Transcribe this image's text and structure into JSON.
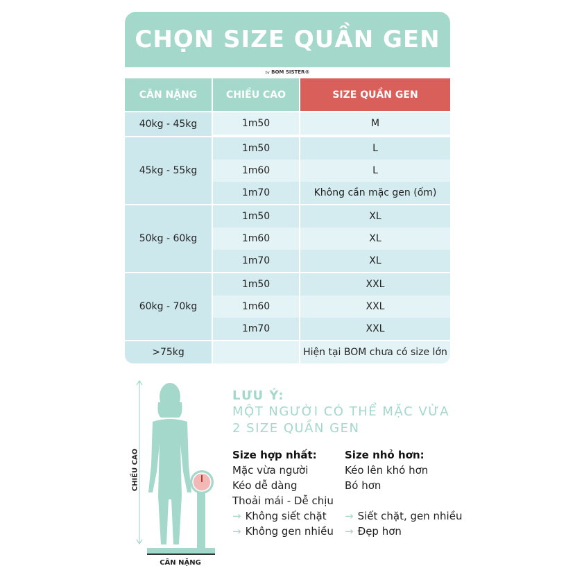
{
  "title": "CHỌN SIZE QUẦN GEN",
  "byline": {
    "by": "by",
    "brand": "BOM SISTER®"
  },
  "colors": {
    "teal": "#a3d8cb",
    "red": "#d9605a",
    "row_light": "#e4f3f6",
    "row_dark": "#d4ebef"
  },
  "table": {
    "headers": [
      "CÂN NẶNG",
      "CHIỀU CAO",
      "SIZE QUẦN GEN"
    ],
    "groups": [
      {
        "weight": "40kg -  45kg",
        "rows": [
          {
            "height": "1m50",
            "size": "M"
          }
        ]
      },
      {
        "weight": "45kg - 55kg",
        "rows": [
          {
            "height": "1m50",
            "size": "L"
          },
          {
            "height": "1m60",
            "size": "L"
          },
          {
            "height": "1m70",
            "size": "Không cần mặc gen (ốm)"
          }
        ]
      },
      {
        "weight": "50kg - 60kg",
        "rows": [
          {
            "height": "1m50",
            "size": "XL"
          },
          {
            "height": "1m60",
            "size": "XL"
          },
          {
            "height": "1m70",
            "size": "XL"
          }
        ]
      },
      {
        "weight": "60kg - 70kg",
        "rows": [
          {
            "height": "1m50",
            "size": "XXL"
          },
          {
            "height": "1m60",
            "size": "XXL"
          },
          {
            "height": "1m70",
            "size": "XXL"
          }
        ]
      },
      {
        "weight": ">75kg",
        "rows": [
          {
            "height": "",
            "size": "Hiện tại BOM chưa có size lớn"
          }
        ]
      }
    ]
  },
  "illustration": {
    "height_label": "CHIỀU CAO",
    "weight_label": "CÂN NẶNG"
  },
  "note": {
    "title": "LƯU Ý:",
    "line1": "MỘT NGƯỜI CÓ THỂ MẶC VỪA",
    "line2": "2 SIZE QUẦN GEN",
    "best": {
      "heading": "Size hợp nhất:",
      "lines": [
        "Mặc vừa người",
        "Kéo dễ dàng",
        "Thoải mái - Dễ chịu"
      ],
      "arrows": [
        "Không siết chặt",
        "Không gen nhiều"
      ]
    },
    "smaller": {
      "heading": "Size nhỏ hơn:",
      "lines": [
        "Kéo lên khó hơn",
        "Bó hơn"
      ],
      "arrows": [
        "Siết chặt, gen nhiều",
        "Đẹp hơn"
      ]
    }
  }
}
